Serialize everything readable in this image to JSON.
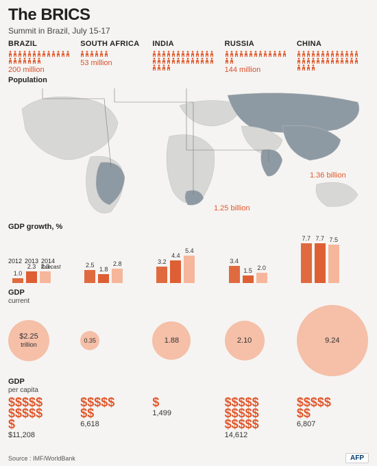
{
  "title": "The BRICS",
  "subtitle": "Summit in Brazil, July 15-17",
  "population_word": "Population",
  "colors": {
    "accent": "#e1572b",
    "accent_light": "#f7b9a0",
    "bar_2012": "#e06a3f",
    "bar_2013": "#de5f34",
    "bar_2014": "#f6b69b",
    "bubble_fill": "#f5bfa8",
    "map_land": "#d7d7d6",
    "map_brics": "#8e9aa3",
    "map_border": "#bfbfbf"
  },
  "countries": [
    {
      "name": "BRAZIL",
      "pop_label": "200 million",
      "people": 20,
      "gdp_growth": [
        1.0,
        2.3,
        2.3
      ],
      "gdp_current": "$2.25",
      "gdp_current_sub": "trillion",
      "bubble_r": 30,
      "per_capita": "$11,208",
      "dollar_syms": 11
    },
    {
      "name": "SOUTH AFRICA",
      "pop_label": "53 million",
      "people": 6,
      "gdp_growth": [
        2.5,
        1.8,
        2.8
      ],
      "gdp_current": "0.35",
      "gdp_current_sub": "",
      "bubble_r": 14,
      "per_capita": "6,618",
      "dollar_syms": 7
    },
    {
      "name": "INDIA",
      "pop_label": "1.25 billion",
      "people": 125,
      "gdp_growth": [
        3.2,
        4.4,
        5.4
      ],
      "gdp_current": "1.88",
      "gdp_current_sub": "",
      "bubble_r": 28,
      "per_capita": "1,499",
      "dollar_syms": 1
    },
    {
      "name": "RUSSIA",
      "pop_label": "144 million",
      "people": 15,
      "gdp_growth": [
        3.4,
        1.5,
        2.0
      ],
      "gdp_current": "2.10",
      "gdp_current_sub": "",
      "bubble_r": 29,
      "per_capita": "14,612",
      "dollar_syms": 15
    },
    {
      "name": "CHINA",
      "pop_label": "1.36 billion",
      "people": 136,
      "gdp_growth": [
        7.7,
        7.7,
        7.5
      ],
      "gdp_current": "9.24",
      "gdp_current_sub": "",
      "bubble_r": 52,
      "per_capita": "6,807",
      "dollar_syms": 7
    }
  ],
  "gdp_growth_label": "GDP growth, %",
  "years": [
    "2012",
    "2013",
    "2014"
  ],
  "forecast_word": "forecast",
  "gdp_current_label": "GDP",
  "gdp_current_sub": "current",
  "gdp_pc_label": "GDP",
  "gdp_pc_sub": "per capita",
  "bar_max": 8.0,
  "source": "Source :  IMF/WorldBank",
  "agency": "AFP"
}
